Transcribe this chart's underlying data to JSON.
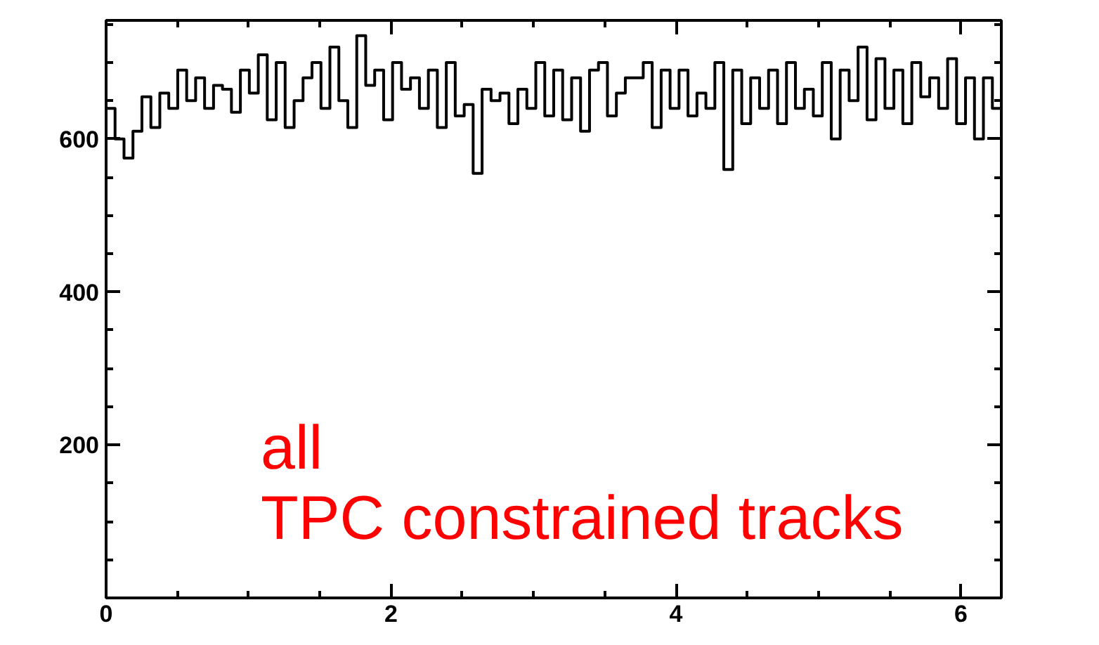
{
  "chart_data": {
    "type": "histogram",
    "bins": [
      0,
      0.0628,
      0.1257,
      0.1885,
      0.2513,
      0.3142,
      0.377,
      0.4398,
      0.5027,
      0.5655,
      0.6283,
      0.6912,
      0.754,
      0.8168,
      0.8796,
      0.9425,
      1.0053,
      1.0681,
      1.131,
      1.1938,
      1.2566,
      1.3195,
      1.3823,
      1.4451,
      1.508,
      1.5708,
      1.6336,
      1.6965,
      1.7593,
      1.8221,
      1.885,
      1.9478,
      2.0106,
      2.0735,
      2.1363,
      2.1991,
      2.2619,
      2.3248,
      2.3876,
      2.4504,
      2.5133,
      2.5761,
      2.6389,
      2.7018,
      2.7646,
      2.8274,
      2.8903,
      2.9531,
      3.0159,
      3.0788,
      3.1416,
      3.2044,
      3.2673,
      3.3301,
      3.3929,
      3.4558,
      3.5186,
      3.5814,
      3.6442,
      3.7071,
      3.7699,
      3.8327,
      3.8956,
      3.9584,
      4.0212,
      4.0841,
      4.1469,
      4.2097,
      4.2726,
      4.3354,
      4.3982,
      4.4611,
      4.5239,
      4.5867,
      4.6496,
      4.7124,
      4.7752,
      4.8381,
      4.9009,
      4.9637,
      5.0265,
      5.0894,
      5.1522,
      5.215,
      5.2779,
      5.3407,
      5.4035,
      5.4664,
      5.5292,
      5.592,
      5.6549,
      5.7177,
      5.7805,
      5.8434,
      5.9062,
      5.969,
      6.0319,
      6.0947,
      6.1575,
      6.2204,
      6.2832
    ],
    "values": [
      640,
      600,
      575,
      610,
      655,
      615,
      660,
      640,
      690,
      650,
      680,
      640,
      670,
      665,
      635,
      690,
      660,
      710,
      625,
      700,
      615,
      650,
      680,
      700,
      640,
      720,
      650,
      615,
      735,
      670,
      690,
      625,
      700,
      665,
      680,
      640,
      690,
      615,
      700,
      630,
      645,
      555,
      665,
      650,
      660,
      620,
      665,
      640,
      700,
      630,
      690,
      625,
      680,
      610,
      690,
      700,
      630,
      660,
      680,
      680,
      700,
      615,
      690,
      640,
      690,
      630,
      660,
      640,
      700,
      560,
      690,
      620,
      680,
      640,
      690,
      620,
      700,
      640,
      665,
      630,
      700,
      600,
      690,
      650,
      720,
      625,
      705,
      640,
      690,
      620,
      700,
      655,
      680,
      640,
      705,
      620,
      680,
      600,
      680,
      640
    ],
    "color": "#000000",
    "xlim": [
      0,
      6.2832
    ],
    "ylim": [
      0,
      755
    ],
    "xticks": [
      0,
      2,
      4,
      6
    ],
    "yticks": [
      200,
      400,
      600
    ],
    "grid": false,
    "annotations": [
      "all",
      "TPC constrained tracks"
    ]
  }
}
